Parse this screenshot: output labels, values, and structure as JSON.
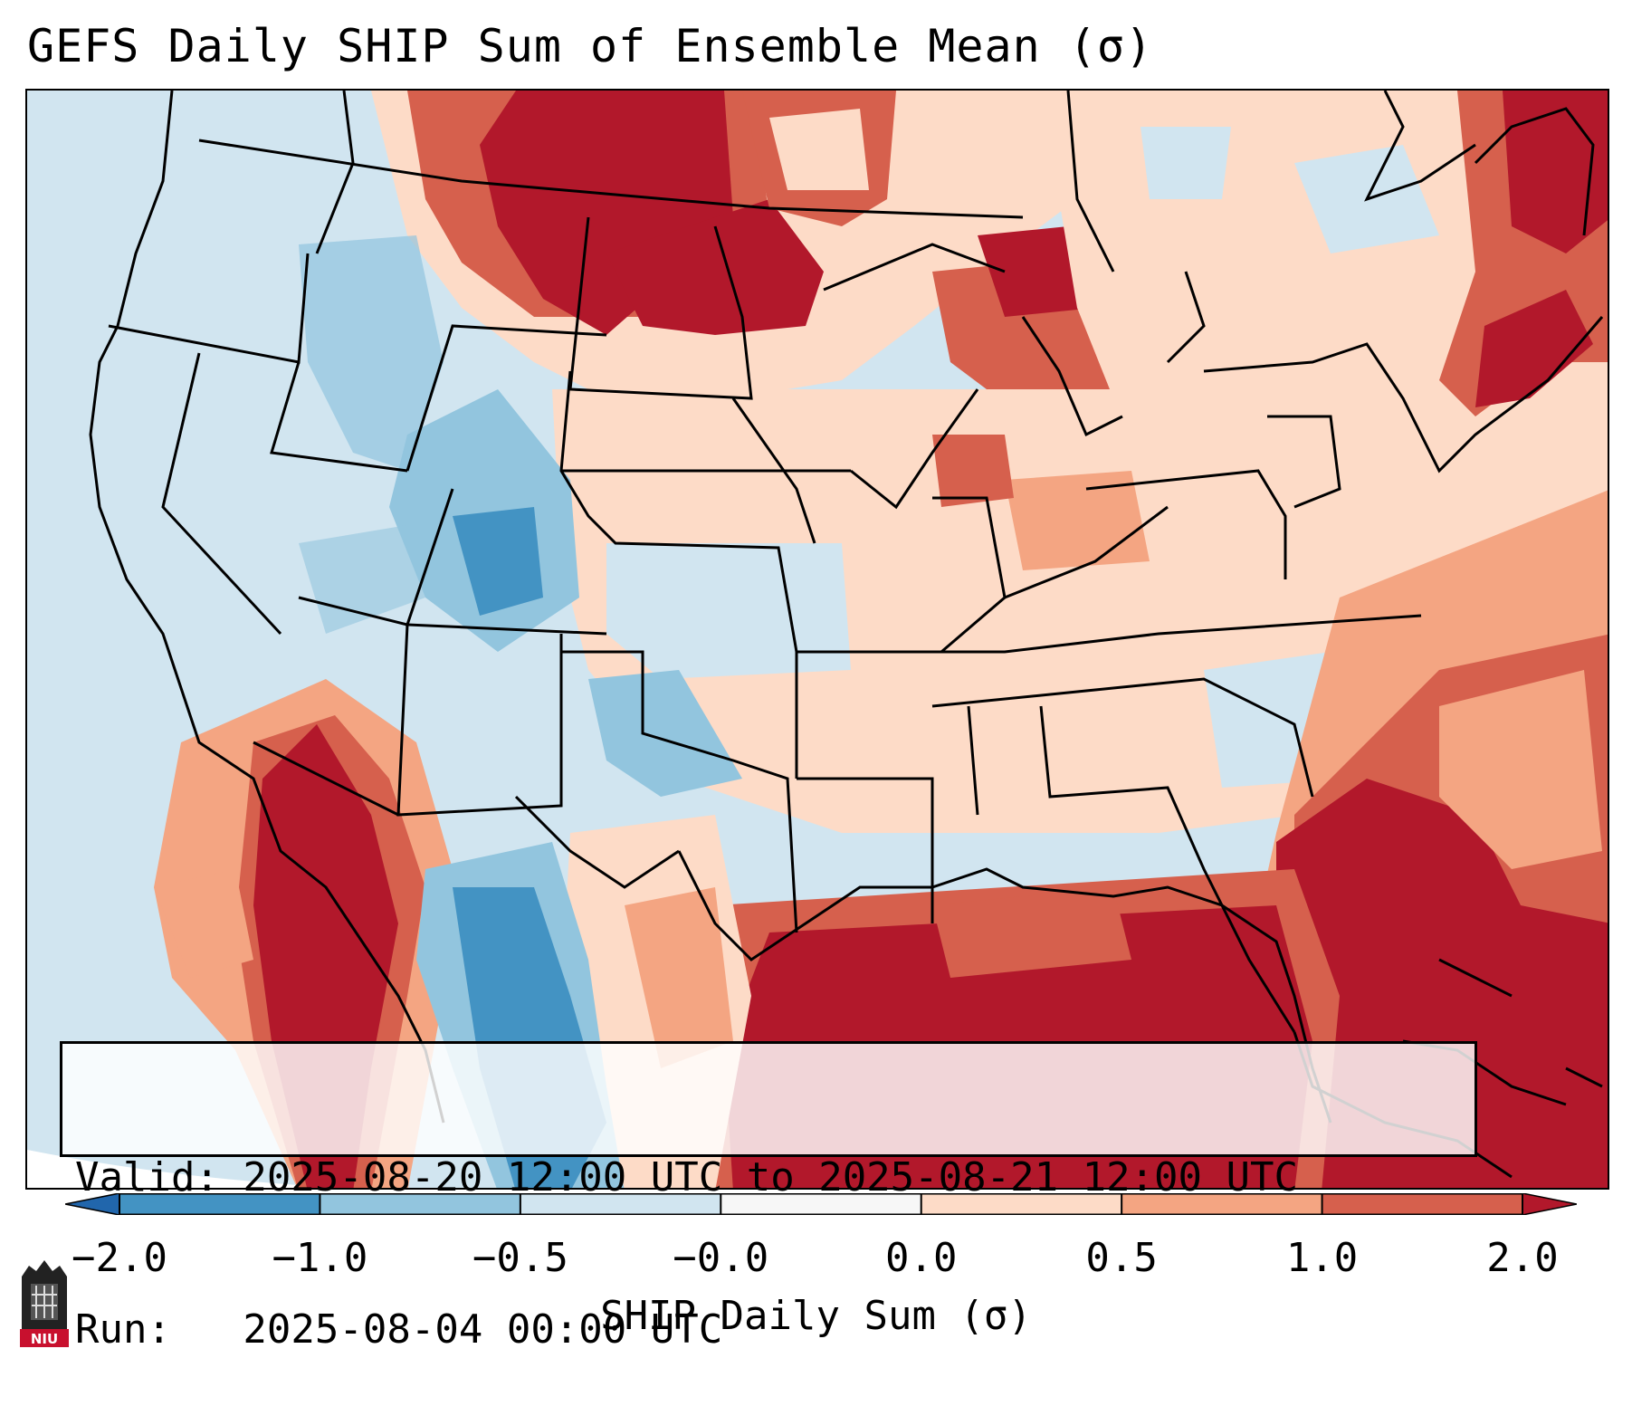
{
  "title": "GEFS Daily SHIP Sum of Ensemble Mean (σ)",
  "info": {
    "valid_line": "Valid: 2025-08-20 12:00 UTC to 2025-08-21 12:00 UTC",
    "run_line": "Run:   2025-08-04 00:00 UTC"
  },
  "colorbar": {
    "label": "SHIP Daily Sum (σ)",
    "ticks": [
      "−2.0",
      "−1.0",
      "−0.5",
      "−0.0",
      "0.0",
      "0.5",
      "1.0",
      "2.0"
    ],
    "extend": "both",
    "colors": [
      "#2166ac",
      "#4393c3",
      "#92c5de",
      "#d1e5f0",
      "#f7f7f7",
      "#fddbc7",
      "#f4a582",
      "#d6604d",
      "#b2182b"
    ]
  },
  "map": {
    "region": "Contiguous United States",
    "field": "SHIP daily sum anomaly",
    "ocean_color": "#d1e5f0"
  },
  "logo_text": "NIU"
}
